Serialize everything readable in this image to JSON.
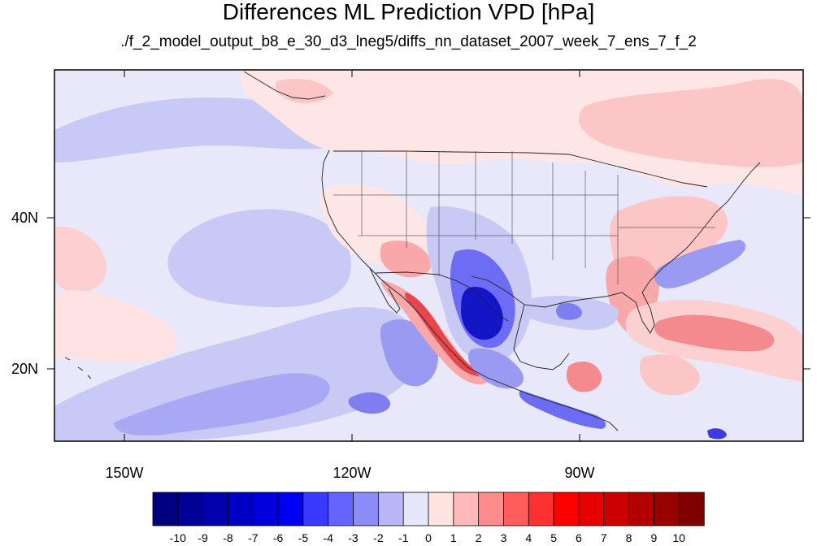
{
  "title": "Differences ML Prediction VPD [hPa]",
  "subtitle": "./f_2_model_output_b8_e_30_d3_lneg5/diffs_nn_dataset_2007_week_7_ens_7_f_2",
  "map": {
    "lat_labels": [
      "40N",
      "20N"
    ],
    "lon_labels": [
      "150W",
      "120W",
      "90W"
    ],
    "colors": {
      "ocean_base": "#e8e8fa",
      "positive_light": "#ffe6e6",
      "positive_mid": "#f9a8aa",
      "positive_strong": "#e7474c",
      "negative_light": "#c9c9f6",
      "negative_mid": "#6c6cf4",
      "negative_strong": "#1515c8"
    }
  },
  "colorbar": {
    "labels": [
      "-10",
      "-9",
      "-8",
      "-7",
      "-6",
      "-5",
      "-4",
      "-3",
      "-2",
      "-1",
      "0",
      "1",
      "2",
      "3",
      "4",
      "5",
      "6",
      "7",
      "8",
      "9",
      "10"
    ],
    "colors": [
      "#000080",
      "#000097",
      "#0000ad",
      "#0000c4",
      "#0000dd",
      "#0000f5",
      "#3939ff",
      "#6464ff",
      "#8d8dfa",
      "#b7b7f7",
      "#e6e6fa",
      "#ffe4e1",
      "#ffb9b9",
      "#ff8c8c",
      "#ff5c5c",
      "#ff3030",
      "#ff0000",
      "#e60000",
      "#cd0000",
      "#b30000",
      "#990000",
      "#800000"
    ]
  }
}
